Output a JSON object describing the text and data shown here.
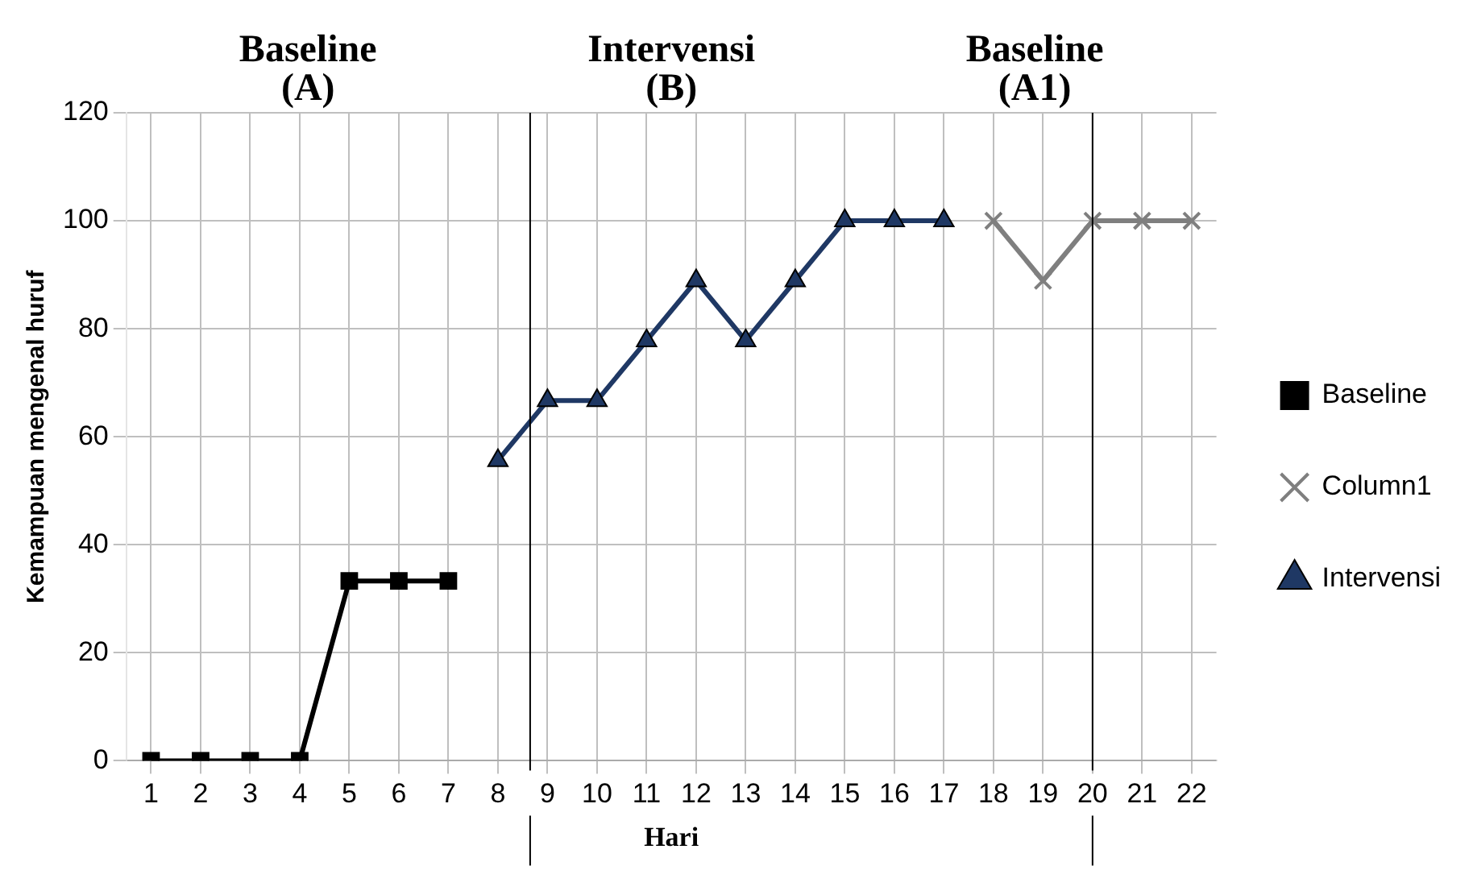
{
  "chart_data": {
    "type": "line",
    "xlabel": "Hari",
    "ylabel": "Kemampuan mengenal huruf",
    "xlim": [
      0.5,
      22.5
    ],
    "xticks": [
      1,
      2,
      3,
      4,
      5,
      6,
      7,
      8,
      9,
      10,
      11,
      12,
      13,
      14,
      15,
      16,
      17,
      18,
      19,
      20,
      21,
      22
    ],
    "ylim": [
      0,
      120
    ],
    "yticks": [
      0,
      20,
      40,
      60,
      80,
      100,
      120
    ],
    "grid": true,
    "legend": "right",
    "series": [
      {
        "name": "Baseline",
        "color": "#000000",
        "marker": "square",
        "x": [
          1,
          2,
          3,
          4,
          5,
          6,
          7
        ],
        "values": [
          0,
          0,
          0,
          0,
          33.3,
          33.3,
          33.3
        ]
      },
      {
        "name": "Column1",
        "color": "#7f7f7f",
        "marker": "cross",
        "x": [
          18,
          19,
          20,
          21,
          22
        ],
        "values": [
          100,
          88.9,
          100,
          100,
          100
        ]
      },
      {
        "name": "Intervensi",
        "color": "#1f3864",
        "marker": "triangle",
        "x": [
          8,
          9,
          10,
          11,
          12,
          13,
          14,
          15,
          16,
          17
        ],
        "values": [
          55.6,
          66.7,
          66.7,
          77.8,
          88.9,
          77.8,
          88.9,
          100,
          100,
          100
        ]
      }
    ],
    "ref_lines": [
      {
        "axis": "x",
        "value": 8.65,
        "color": "#000000"
      },
      {
        "axis": "x",
        "value": 20,
        "color": "#000000"
      }
    ],
    "annotations": [
      "Baseline (A)",
      "Intervensi (B)",
      "Baseline (A1)"
    ]
  }
}
